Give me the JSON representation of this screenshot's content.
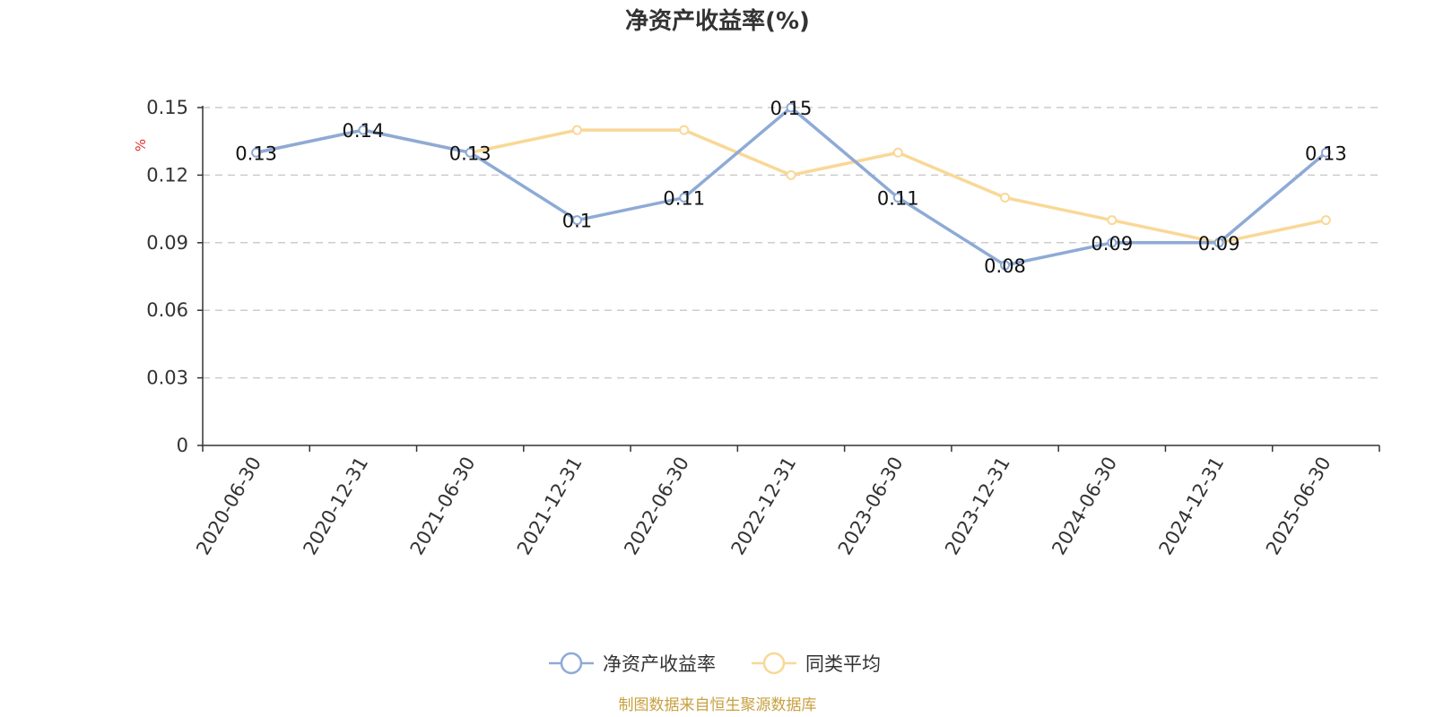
{
  "chart_data": {
    "type": "line",
    "title": "净资产收益率(%)",
    "ylabel": "%",
    "ylim": [
      0,
      0.15
    ],
    "yticks": [
      "0",
      "0.03",
      "0.06",
      "0.09",
      "0.12",
      "0.15"
    ],
    "ytick_values": [
      0,
      0.03,
      0.06,
      0.09,
      0.12,
      0.15
    ],
    "categories": [
      "2020-06-30",
      "2020-12-31",
      "2021-06-30",
      "2021-12-31",
      "2022-06-30",
      "2022-12-31",
      "2023-06-30",
      "2023-12-31",
      "2024-06-30",
      "2024-12-31",
      "2025-06-30"
    ],
    "grid": true,
    "legend_position": "bottom-center",
    "series": [
      {
        "name": "净资产收益率",
        "color": "#8eaad6",
        "values": [
          0.13,
          0.14,
          0.13,
          0.1,
          0.11,
          0.15,
          0.11,
          0.08,
          0.09,
          0.09,
          0.13
        ],
        "labels": [
          "0.13",
          "0.14",
          "0.13",
          "0.1",
          "0.11",
          "0.15",
          "0.11",
          "0.08",
          "0.09",
          "0.09",
          "0.13"
        ]
      },
      {
        "name": "同类平均",
        "color": "#f9d896",
        "values": [
          0.13,
          0.14,
          0.13,
          0.14,
          0.14,
          0.12,
          0.13,
          0.11,
          0.1,
          0.09,
          0.1
        ]
      }
    ]
  },
  "footer": {
    "source": "制图数据来自恒生聚源数据库",
    "color": "#c8a040"
  }
}
